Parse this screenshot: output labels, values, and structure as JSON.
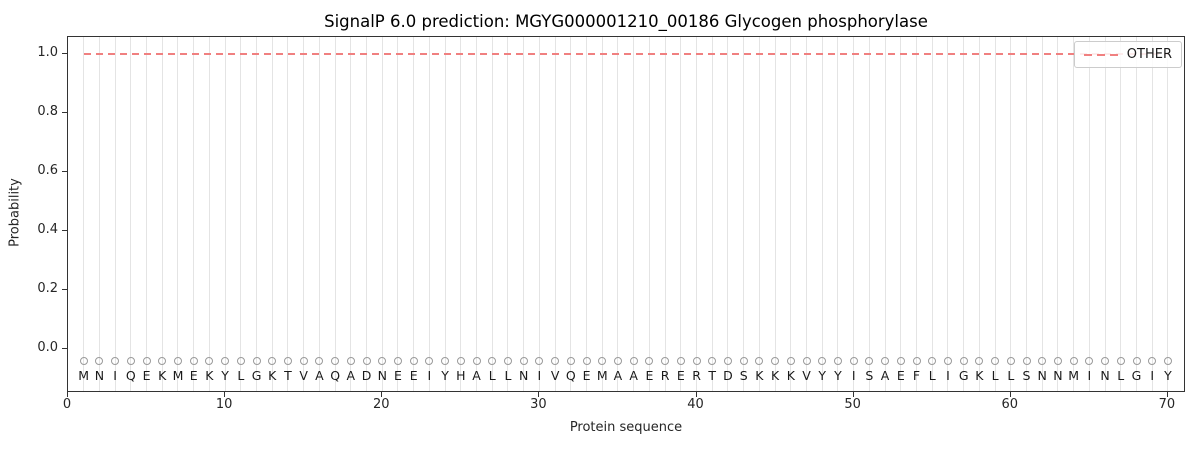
{
  "chart_data": {
    "type": "line",
    "title": "SignalP 6.0 prediction: MGYG000001210_00186 Glycogen phosphorylase",
    "xlabel": "Protein sequence",
    "ylabel": "Probability",
    "xlim": [
      0,
      71.15
    ],
    "ylim": [
      -0.149,
      1.0565
    ],
    "xticks": [
      0,
      10,
      20,
      30,
      40,
      50,
      60,
      70
    ],
    "yticks": [
      "0.0",
      "0.2",
      "0.4",
      "0.6",
      "0.8",
      "1.0"
    ],
    "grid": "vertical line at every residue position",
    "sequence": "MNIQEKMEKYLGKTVAQADNEEIYHALLNIVQEMAAERERTDSKKKVYYISAEFLIGKLLSNNMINLGIY",
    "series": [
      {
        "name": "OTHER",
        "style": "dashed",
        "color": "#f08080",
        "x_start": 1,
        "x_end": 70,
        "constant_y": 1.0
      }
    ],
    "residue_markers": {
      "shape": "open-circle",
      "y": -0.04,
      "stroke": "#9a9a9a"
    },
    "residue_letters_y": -0.09,
    "legend": {
      "position": "upper right",
      "entries": [
        {
          "label": "OTHER",
          "style": "dashed",
          "color": "#f08080"
        }
      ]
    }
  },
  "colors": {
    "background": "#ffffff",
    "spine": "#333333",
    "gridline": "#e4e4e4",
    "tick_label": "#262626",
    "sequence_letter": "#1a1a1a",
    "other_line": "#f08080",
    "legend_border": "#cccccc"
  }
}
